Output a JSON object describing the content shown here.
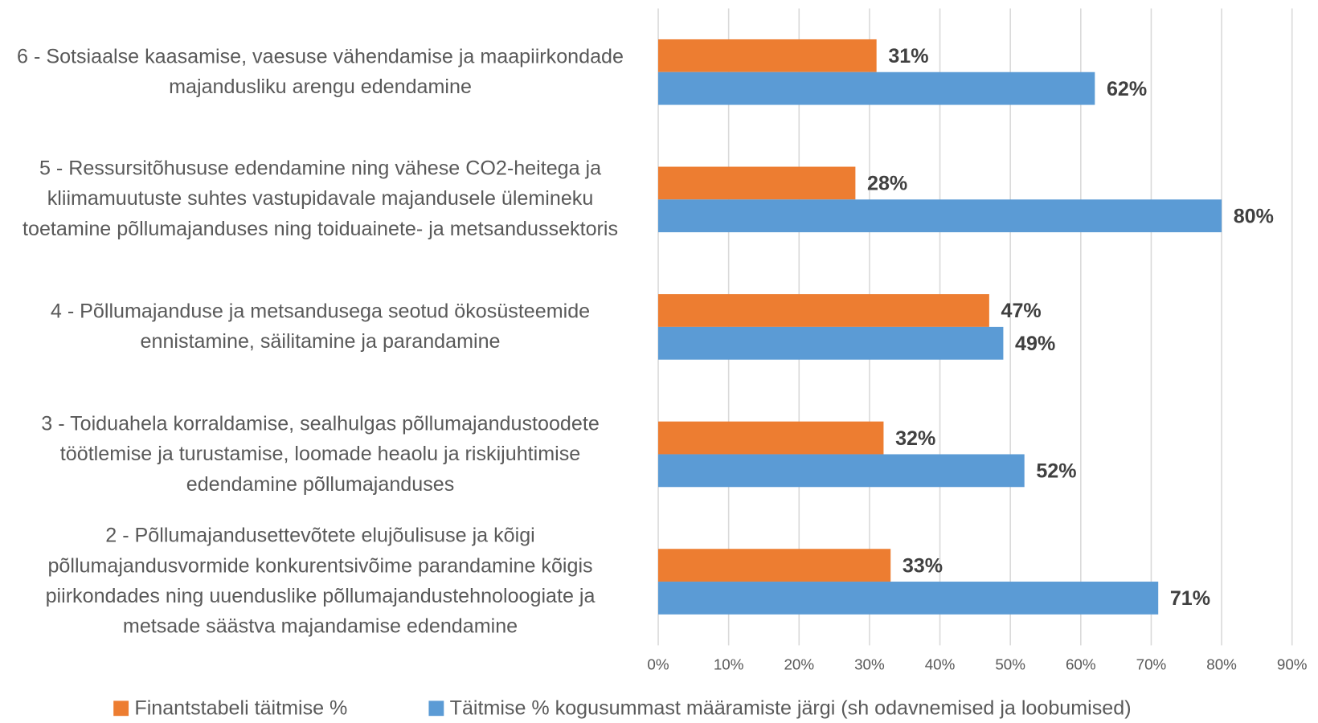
{
  "chart_data": {
    "type": "hbar",
    "categories": [
      "6 - Sotsiaalse kaasamise, vaesuse vähendamise ja maapiirkondade majandusliku arengu edendamine",
      "5 - Ressursitõhususe edendamine ning vähese CO2-heitega ja kliimamuutuste suhtes vastupidavale majandusele ülemineku toetamine põllumajanduses ning toiduainete- ja metsandussektoris",
      "4 - Põllumajanduse ja metsandusega seotud ökosüsteemide ennistamine, säilitamine ja parandamine",
      "3 - Toiduahela korraldamise, sealhulgas põllumajandustoodete töötlemise ja turustamise, loomade heaolu ja riskijuhtimise edendamine põllumajanduses",
      "2 - Põllumajandusettevõtete elujõulisuse ja kõigi põllumajandusvormide konkurentsivõime parandamine kõigis piirkondades ning uuenduslike põllumajandustehnoloogiate ja metsade säästva majandamise edendamine"
    ],
    "series": [
      {
        "name": "Finantstabeli täitmise %",
        "color": "#ed7d31",
        "values": [
          31,
          28,
          47,
          32,
          33
        ],
        "value_labels": [
          "31%",
          "28%",
          "47%",
          "32%",
          "33%"
        ]
      },
      {
        "name": "Täitmise % kogusummast määramiste järgi (sh odavnemised ja loobumised)",
        "color": "#5b9bd5",
        "values": [
          62,
          80,
          49,
          52,
          71
        ],
        "value_labels": [
          "62%",
          "80%",
          "49%",
          "52%",
          "71%"
        ]
      }
    ],
    "xlim": [
      0,
      90
    ],
    "xticks": [
      {
        "value": 0,
        "label": "0%"
      },
      {
        "value": 10,
        "label": "10%"
      },
      {
        "value": 20,
        "label": "20%"
      },
      {
        "value": 30,
        "label": "30%"
      },
      {
        "value": 40,
        "label": "40%"
      },
      {
        "value": 50,
        "label": "50%"
      },
      {
        "value": 60,
        "label": "60%"
      },
      {
        "value": 70,
        "label": "70%"
      },
      {
        "value": 80,
        "label": "80%"
      },
      {
        "value": 90,
        "label": "90%"
      }
    ],
    "grid": true,
    "legend": "bottom"
  }
}
